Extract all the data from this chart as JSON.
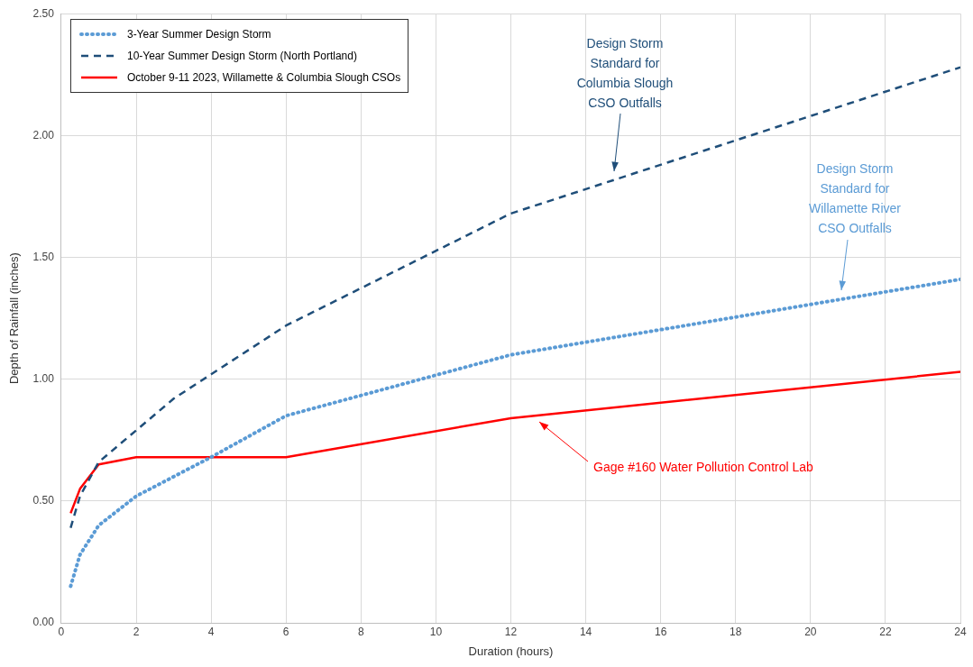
{
  "chart_data": {
    "type": "line",
    "xlabel": "Duration (hours)",
    "ylabel": "Depth of Rainfall (inches)",
    "xlim": [
      0,
      24
    ],
    "xticks": [
      0,
      2,
      4,
      6,
      8,
      10,
      12,
      14,
      16,
      18,
      20,
      22,
      24
    ],
    "ylim": [
      0,
      2.5
    ],
    "yticks": [
      {
        "value": 0,
        "label": "0.00"
      },
      {
        "value": 0.5,
        "label": "0.50"
      },
      {
        "value": 1,
        "label": "1.00"
      },
      {
        "value": 1.5,
        "label": "1.50"
      },
      {
        "value": 2,
        "label": "2.00"
      },
      {
        "value": 2.5,
        "label": "2.50"
      }
    ],
    "grid": true,
    "legend": "top left",
    "marker": "none",
    "series": [
      {
        "name": "3-Year Summer Design Storm",
        "color": "#5b9bd5",
        "line_style": "dotted",
        "x": [
          0.25,
          0.5,
          1,
          2,
          3,
          4,
          6,
          12,
          24
        ],
        "values": [
          0.15,
          0.28,
          0.4,
          0.52,
          0.6,
          0.68,
          0.85,
          1.1,
          1.41
        ]
      },
      {
        "name": "10-Year Summer Design Storm (North Portland)",
        "color": "#1f4e79",
        "line_style": "dashed",
        "x": [
          0.25,
          0.5,
          1,
          2,
          3,
          4,
          6,
          12,
          24
        ],
        "values": [
          0.39,
          0.52,
          0.66,
          0.79,
          0.92,
          1.02,
          1.22,
          1.68,
          2.28
        ]
      },
      {
        "name": "October 9-11 2023, Willamette & Columbia Slough CSOs",
        "color": "#ff0000",
        "line_style": "solid",
        "x": [
          0.25,
          0.5,
          1,
          2,
          4,
          6,
          12,
          24
        ],
        "values": [
          0.45,
          0.55,
          0.65,
          0.68,
          0.68,
          0.68,
          0.84,
          1.03
        ]
      }
    ],
    "annotations": [
      "Design Storm\nStandard for\nColumbia Slough\nCSO Outfalls",
      "Design Storm\nStandard for\nWillamette River\nCSO Outfalls",
      "Gage #160 Water Pollution Control Lab"
    ]
  }
}
